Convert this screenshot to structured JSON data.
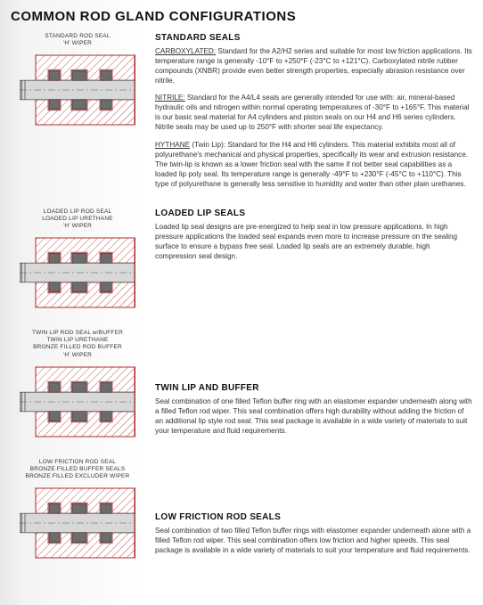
{
  "page": {
    "title": "COMMON ROD GLAND CONFIGURATIONS"
  },
  "sections": [
    {
      "caption": "STANDARD ROD SEAL\n'H' WIPER",
      "title": "STANDARD SEALS",
      "paragraphs": [
        {
          "lead": "CARBOXYLATED:",
          "text": " Standard for the A2/H2 series and suitable for most low friction applications. Its temperature range is generally  -10°F to +250°F (-23°C to +121°C). Carboxylated nitrile rubber compounds (XNBR) provide even better strength properties, especially abrasion resistance over nitrile."
        },
        {
          "lead": "NITRILE:",
          "text": " Standard for the A4/L4 seals are generally intended for use with: air, mineral-based hydraulic oils and nitrogen within normal operating temperatures of -30°F to +165°F.  This material is our basic seal material for A4 cylinders and piston seals on our H4 and H6 series cylinders. Nitrile seals may be used up to 250°F with shorter seal life expectancy."
        },
        {
          "lead": "HYTHANE",
          "text": " (Twin Lip): Standard for the H4 and H6 cylinders. This material exhibits most all of polyurethane's mechanical and physical properties, specifically its wear and extrusion resistance. The twin-lip is known as a lower friction seal with the same if not better seal capabilities as a loaded lip poly seal. Its temperature range is generally -49°F to +230°F (-45°C to +110°C). This type of polyurethane is generally less sensitive to humidity and water than other plain urethanes."
        }
      ]
    },
    {
      "caption": "LOADED LIP ROD SEAL\nLOADED LIP URETHANE\n'H' WIPER",
      "title": "LOADED LIP SEALS",
      "paragraphs": [
        {
          "lead": "",
          "text": "Loaded lip seal designs are pre-energized to help seal in low pressure applications. In high pressure applications the loaded seal expands even more to increase pressure on the sealing surface to ensure a bypass free seal.  Loaded lip seals are an extremely durable, high compression seal design."
        }
      ]
    },
    {
      "caption": "TWIN LIP ROD SEAL w/BUFFER\nTWIN LIP URETHANE\nBRONZE FILLED ROD BUFFER\n'H' WIPER",
      "title": "TWIN LIP AND BUFFER",
      "paragraphs": [
        {
          "lead": "",
          "text": "Seal combination of one filled Teflon buffer ring with an elastomer expander underneath along with a filled Teflon rod wiper. This seal combination offers high durability without adding the friction of an additional lip style rod seal. This seal package is available in a wide variety of materials to suit your temperature and fluid requirements."
        }
      ]
    },
    {
      "caption": "LOW FRICTION ROD SEAL\nBRONZE FILLED BUFFER SEALS\nBRONZE FILLED EXCLUDER WIPER",
      "title": "LOW FRICTION ROD SEALS",
      "paragraphs": [
        {
          "lead": "",
          "text": "Seal combination of two filled Teflon buffer rings with elastomer expander underneath alone with a filled Teflon rod wiper. This seal combination offers low friction and higher speeds. This seal package is available in a wide variety of materials to suit your temperature and fluid requirements."
        }
      ]
    }
  ],
  "diagram_style": {
    "rod_fill": "#d8d8d8",
    "housing_fill": "#ffffff",
    "housing_stroke": "#b02a2a",
    "hatch_stroke": "#b02a2a",
    "seal_fill": "#6c6c6c",
    "seal_stroke": "#303030",
    "line_stroke": "#555555",
    "width": 130,
    "height": 90
  }
}
